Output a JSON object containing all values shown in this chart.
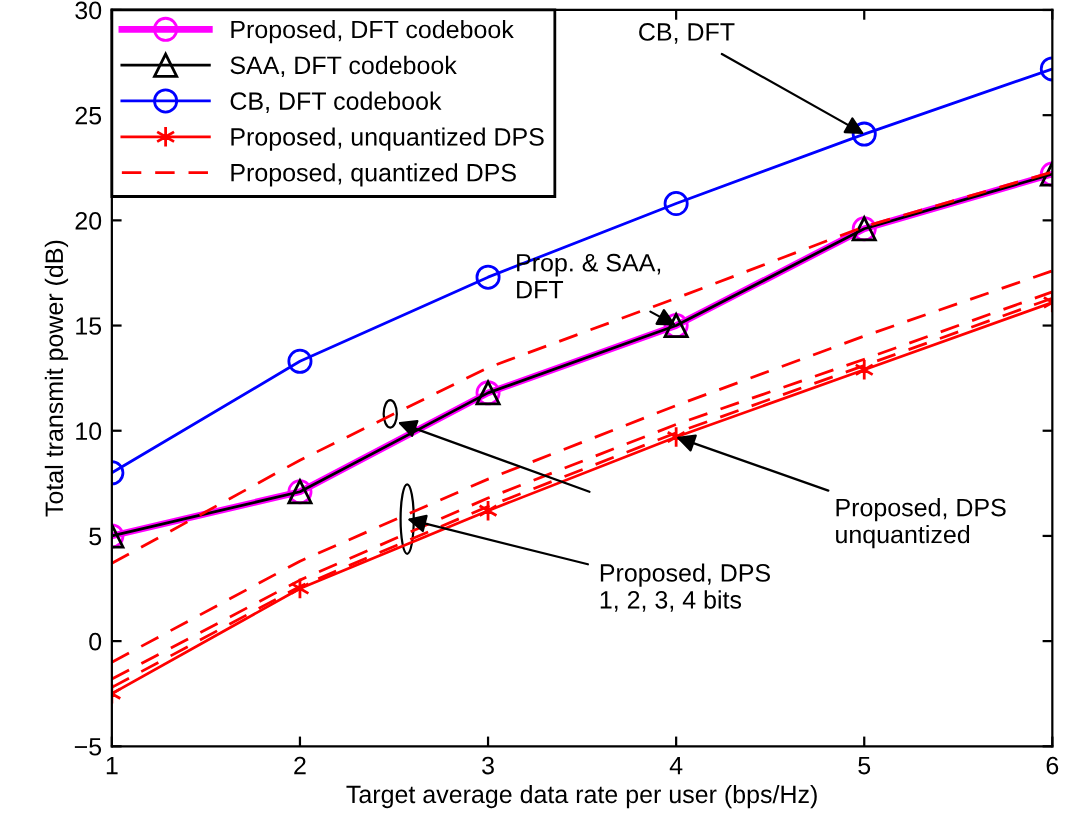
{
  "chart_data": {
    "type": "line",
    "xlabel": "Target average data rate per user (bps/Hz)",
    "ylabel": "Total transmit power (dB)",
    "x": [
      1,
      2,
      3,
      4,
      5,
      6
    ],
    "xlim": [
      1,
      6
    ],
    "xticks": [
      1,
      2,
      3,
      4,
      5,
      6
    ],
    "ylim": [
      -5,
      30
    ],
    "yticks": [
      -5,
      0,
      5,
      10,
      15,
      20,
      25,
      30
    ],
    "grid": false,
    "legend": "top left",
    "series": [
      {
        "name": "Proposed, DFT codebook",
        "color": "#ff00ff",
        "marker": "circle",
        "line_style": "solid",
        "values": [
          5.0,
          7.1,
          11.8,
          15.0,
          19.6,
          22.2
        ]
      },
      {
        "name": "SAA, DFT codebook",
        "color": "#000000",
        "marker": "triangle",
        "line_style": "solid",
        "values": [
          5.0,
          7.1,
          11.8,
          15.0,
          19.6,
          22.2
        ]
      },
      {
        "name": "CB, DFT codebook",
        "color": "#0000ff",
        "marker": "circle",
        "line_style": "solid",
        "values": [
          8.0,
          13.3,
          17.3,
          20.8,
          24.1,
          27.2
        ]
      },
      {
        "name": "Proposed, unquantized DPS",
        "color": "#ff0000",
        "marker": "cross",
        "line_style": "solid",
        "values": [
          -2.5,
          2.5,
          6.2,
          9.7,
          12.9,
          16.1
        ]
      },
      {
        "name": "Proposed, quantized DPS",
        "color": "#ff0000",
        "marker": "none",
        "line_style": "dashed",
        "values": [
          3.7,
          8.6,
          13.0,
          16.3,
          19.7,
          22.3
        ]
      },
      {
        "color": "#ff0000",
        "marker": "none",
        "line_style": "dashed",
        "values": [
          -1.0,
          3.8,
          7.7,
          11.2,
          14.5,
          17.6
        ]
      },
      {
        "color": "#ff0000",
        "marker": "none",
        "line_style": "dashed",
        "values": [
          -1.8,
          2.9,
          6.8,
          10.3,
          13.4,
          16.6
        ]
      },
      {
        "color": "#ff0000",
        "marker": "none",
        "line_style": "dashed",
        "values": [
          -2.2,
          2.6,
          6.4,
          9.9,
          13.1,
          16.3
        ]
      }
    ],
    "annotations": [
      {
        "text": "CB, DFT",
        "x": 5,
        "y": 24.1
      },
      {
        "text": "Prop. & SAA,\nDFT",
        "x": 4,
        "y": 15.0
      },
      {
        "text": "Proposed, DPS\nunquantized",
        "x": 4,
        "y": 9.7
      },
      {
        "text": "Proposed, DPS\n1, 2, 3, 4 bits",
        "x": 2.57,
        "y": 5.8
      }
    ]
  }
}
